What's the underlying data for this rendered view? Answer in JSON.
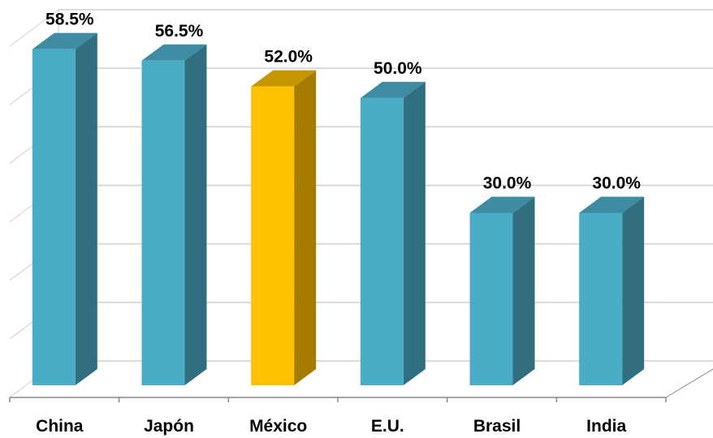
{
  "chart_data": {
    "type": "bar",
    "categories": [
      "China",
      "Japón",
      "México",
      "E.U.",
      "Brasil",
      "India"
    ],
    "values": [
      58.5,
      56.5,
      52.0,
      50.0,
      30.0,
      30.0
    ],
    "value_labels": [
      "58.5%",
      "56.5%",
      "52.0%",
      "50.0%",
      "30.0%",
      "30.0%"
    ],
    "highlight_category": "México",
    "ylim": [
      0,
      60
    ],
    "grid": true,
    "legend": "none",
    "style": "3d-column",
    "colors": {
      "bar_front": "#4BACC6",
      "bar_side": "#316F80",
      "bar_top": "#3D8CA1",
      "highlight_front": "#FFC000",
      "highlight_side": "#A57C00",
      "highlight_top": "#C89600",
      "grid": "#D0D0D0",
      "axis": "#888888"
    }
  }
}
